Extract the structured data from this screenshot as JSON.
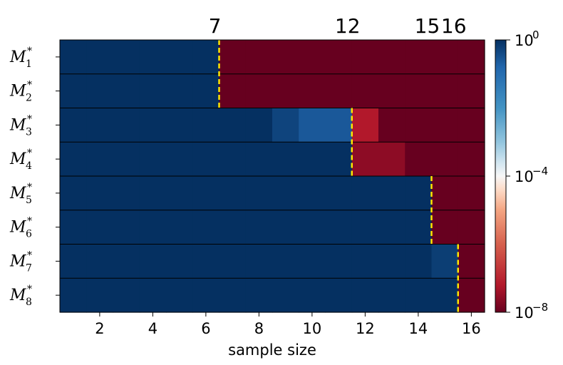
{
  "chart_data": {
    "type": "heatmap",
    "xlabel": "sample size",
    "x": [
      1,
      2,
      3,
      4,
      5,
      6,
      7,
      8,
      9,
      10,
      11,
      12,
      13,
      14,
      15,
      16
    ],
    "x_ticks": [
      2,
      4,
      6,
      8,
      10,
      12,
      14,
      16
    ],
    "xlim": [
      0.5,
      16.5
    ],
    "rows": [
      {
        "label": "M",
        "subscript": "1",
        "superscript": "*"
      },
      {
        "label": "M",
        "subscript": "2",
        "superscript": "*"
      },
      {
        "label": "M",
        "subscript": "3",
        "superscript": "*"
      },
      {
        "label": "M",
        "subscript": "4",
        "superscript": "*"
      },
      {
        "label": "M",
        "subscript": "5",
        "superscript": "*"
      },
      {
        "label": "M",
        "subscript": "6",
        "superscript": "*"
      },
      {
        "label": "M",
        "subscript": "7",
        "superscript": "*"
      },
      {
        "label": "M",
        "subscript": "8",
        "superscript": "*"
      }
    ],
    "values_log10": [
      [
        0,
        0,
        0,
        0,
        0,
        0,
        -8,
        -8,
        -8,
        -8,
        -8,
        -8,
        -8,
        -8,
        -8,
        -8
      ],
      [
        0,
        0,
        0,
        0,
        0,
        0,
        -8,
        -8,
        -8,
        -8,
        -8,
        -8,
        -8,
        -8,
        -8,
        -8
      ],
      [
        0,
        0,
        0,
        0,
        0,
        0,
        0,
        0,
        -0.3,
        -0.6,
        -0.6,
        -7.2,
        -8,
        -8,
        -8,
        -8
      ],
      [
        0,
        0,
        0,
        0,
        0,
        0,
        0,
        0,
        0,
        0,
        0,
        -7.6,
        -7.6,
        -8,
        -8,
        -8
      ],
      [
        0,
        0,
        0,
        0,
        0,
        0,
        0,
        0,
        0,
        0,
        0,
        0,
        0,
        0,
        -8,
        -8
      ],
      [
        0,
        0,
        0,
        0,
        0,
        0,
        0,
        0,
        0,
        0,
        0,
        0,
        0,
        0,
        -8,
        -8
      ],
      [
        0,
        0,
        0,
        0,
        0,
        0,
        0,
        0,
        0,
        0,
        0,
        0,
        0,
        0,
        -0.2,
        -8
      ],
      [
        0,
        0,
        0,
        0,
        0,
        0,
        0,
        0,
        0,
        0,
        0,
        0,
        0,
        0,
        0,
        -8
      ]
    ],
    "thresholds": [
      {
        "rows": [
          1,
          2
        ],
        "x": 6.5,
        "label": "7"
      },
      {
        "rows": [
          3,
          4
        ],
        "x": 11.5,
        "label": "12"
      },
      {
        "rows": [
          5,
          6
        ],
        "x": 14.5,
        "label": "15"
      },
      {
        "rows": [
          7,
          8
        ],
        "x": 15.5,
        "label": "16"
      }
    ],
    "threshold_color": "#ffe600",
    "colorbar": {
      "scale": "log",
      "min_log10": -8,
      "max_log10": 0,
      "ticks": [
        {
          "log10": 0,
          "base": "10",
          "exp": "0"
        },
        {
          "log10": -4,
          "base": "10",
          "exp": "−4"
        },
        {
          "log10": -8,
          "base": "10",
          "exp": "−8"
        }
      ],
      "colormap": "RdBu",
      "colors": [
        {
          "t": 0.0,
          "hex": "#67001f"
        },
        {
          "t": 0.1,
          "hex": "#b2182b"
        },
        {
          "t": 0.25,
          "hex": "#d6604d"
        },
        {
          "t": 0.375,
          "hex": "#f4a582"
        },
        {
          "t": 0.45,
          "hex": "#fddbc7"
        },
        {
          "t": 0.5,
          "hex": "#f7f7f7"
        },
        {
          "t": 0.55,
          "hex": "#d1e5f0"
        },
        {
          "t": 0.625,
          "hex": "#92c5de"
        },
        {
          "t": 0.75,
          "hex": "#4393c3"
        },
        {
          "t": 0.9,
          "hex": "#2166ac"
        },
        {
          "t": 1.0,
          "hex": "#053061"
        }
      ]
    },
    "grid": false
  }
}
